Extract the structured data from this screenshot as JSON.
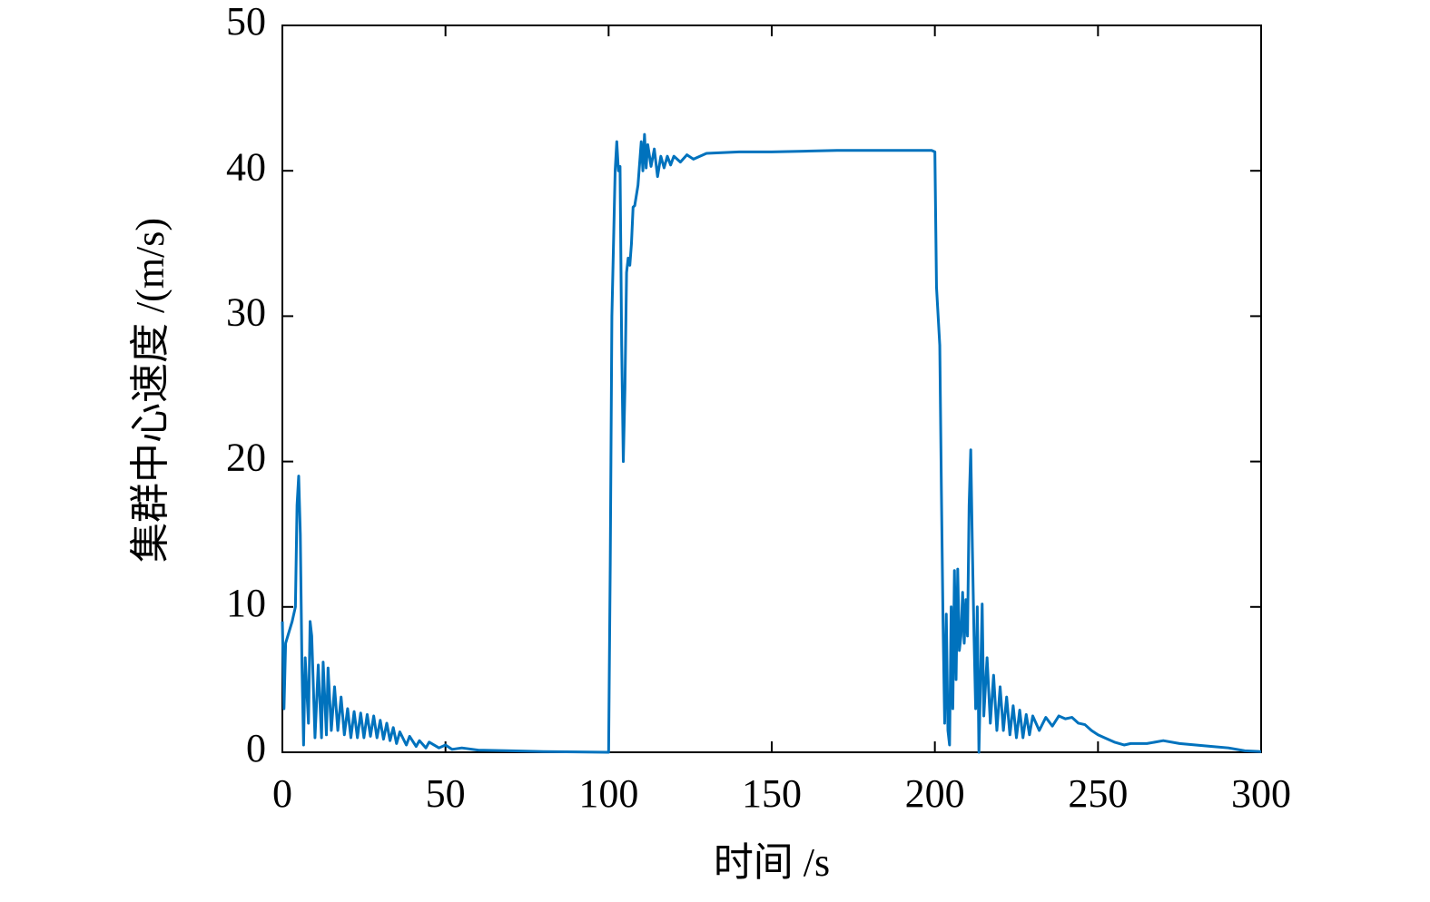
{
  "chart_data": {
    "type": "line",
    "xlabel": "时间 /s",
    "ylabel": "集群中心速度 /(m/s)",
    "color": "#0072bd",
    "xlim": [
      0,
      300
    ],
    "xticks": [
      0,
      50,
      100,
      150,
      200,
      250,
      300
    ],
    "ylim": [
      0,
      50
    ],
    "yticks": [
      0,
      10,
      20,
      30,
      40,
      50
    ],
    "grid": false,
    "x": [
      0,
      0.5,
      1,
      3,
      4,
      4.5,
      5,
      5.5,
      6,
      6.5,
      7,
      8,
      8.5,
      9,
      10,
      11,
      12,
      12.5,
      13.5,
      14,
      15,
      16,
      17,
      18,
      19,
      20,
      21,
      22,
      23,
      24,
      25,
      26,
      27,
      28,
      29,
      30,
      31,
      32,
      33,
      34,
      35,
      36,
      38,
      39,
      41,
      42,
      44,
      45,
      48,
      50,
      52,
      55,
      60,
      70,
      80,
      99.5,
      100,
      100.5,
      101,
      102,
      102.5,
      103,
      103.5,
      104,
      104.5,
      105,
      105.5,
      106,
      106.5,
      107,
      107.5,
      108,
      109,
      110,
      110.5,
      111,
      111.5,
      112,
      113,
      114,
      115,
      116,
      117,
      118,
      119,
      120,
      122,
      124,
      126,
      130,
      140,
      150,
      160,
      170,
      180,
      190,
      199,
      200,
      200.5,
      201.5,
      202,
      202.5,
      203,
      203.5,
      204,
      204.5,
      205,
      205.5,
      206,
      206.5,
      207,
      207.5,
      208,
      208.5,
      209,
      209.5,
      210,
      210.5,
      211,
      211.5,
      212,
      212.5,
      213,
      213.5,
      214,
      214.5,
      215,
      216,
      217,
      218,
      219,
      220,
      221,
      222,
      223,
      224,
      225,
      226,
      227,
      228,
      229,
      230,
      232,
      234,
      236,
      238,
      240,
      242,
      244,
      246,
      248,
      250,
      252,
      255,
      258,
      260,
      265,
      270,
      275,
      280,
      285,
      290,
      295,
      300
    ],
    "values": [
      9,
      3,
      7.5,
      9,
      10,
      17,
      19,
      15,
      6,
      0.5,
      6.5,
      2,
      9,
      8,
      1,
      6,
      1,
      6.2,
      1.2,
      5.8,
      1.5,
      4.5,
      1.5,
      3.8,
      1.2,
      3,
      1,
      2.8,
      1,
      2.7,
      1,
      2.6,
      1.1,
      2.5,
      1,
      2.2,
      0.9,
      2,
      0.8,
      1.7,
      0.6,
      1.4,
      0.5,
      1.1,
      0.4,
      0.8,
      0.3,
      0.7,
      0.3,
      0.5,
      0.2,
      0.3,
      0.15,
      0.1,
      0.05,
      0,
      0,
      13,
      30,
      40,
      42,
      40,
      40.3,
      28,
      20,
      25,
      33,
      34,
      33.5,
      35,
      37.5,
      37.6,
      39,
      42,
      40,
      42.5,
      40.2,
      41.8,
      40.3,
      41.5,
      39.6,
      41,
      40.2,
      41,
      40.4,
      41,
      40.6,
      41.1,
      40.8,
      41.2,
      41.3,
      41.3,
      41.35,
      41.4,
      41.4,
      41.4,
      41.4,
      41.3,
      32,
      28,
      18,
      9,
      2,
      9.5,
      1.5,
      0.5,
      10,
      3,
      12.5,
      5,
      12.6,
      7,
      8,
      11,
      7.5,
      10.5,
      8,
      17,
      20.8,
      14,
      8,
      3,
      10,
      0,
      5,
      10.2,
      2.5,
      6.5,
      2,
      5.3,
      1.5,
      4.5,
      1.5,
      3.8,
      1.2,
      3.2,
      1,
      2.9,
      1,
      2.6,
      1.2,
      2.5,
      1.5,
      2.4,
      1.8,
      2.5,
      2.3,
      2.4,
      2,
      1.9,
      1.5,
      1.2,
      1,
      0.7,
      0.5,
      0.6,
      0.6,
      0.8,
      0.6,
      0.5,
      0.4,
      0.3,
      0.1,
      0.05
    ]
  }
}
